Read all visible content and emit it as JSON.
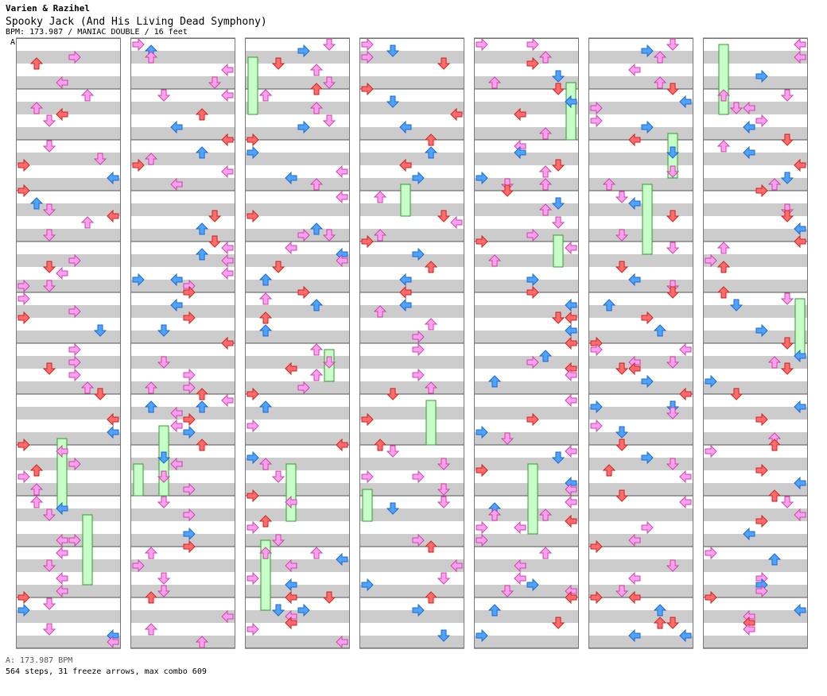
{
  "header": {
    "artist": "Varien & Razihel",
    "title": "Spooky Jack (And His Living Dead Symphony)",
    "info": "BPM: 173.987 / MANIAC DOUBLE / 16 feet",
    "bpm_marker": "A"
  },
  "footer": {
    "bpm_line": "A: 173.987 BPM",
    "stats_line": "564 steps, 31 freeze arrows, max combo 609"
  },
  "chart_data": {
    "type": "step-chart",
    "mode": "DOUBLE",
    "difficulty": "MANIAC",
    "feet": 16,
    "bpm": 173.987,
    "steps": 564,
    "freeze_arrows": 31,
    "max_combo": 609,
    "columns_shown": 7,
    "measures_per_column": 12,
    "colors": {
      "quarter": "#ff6b6b",
      "eighth": "#4ea3ff",
      "sixteenth": "#ffa0f0",
      "freeze": "#c8ffc8",
      "freeze_border": "#339933",
      "stripe": "#cccccc"
    }
  }
}
